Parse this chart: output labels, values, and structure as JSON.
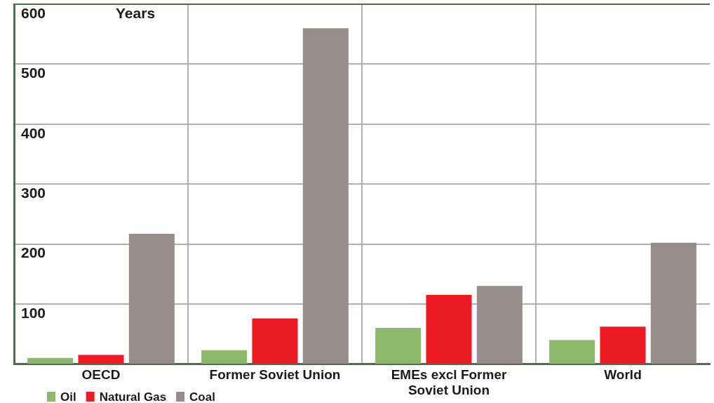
{
  "chart_data": {
    "type": "bar",
    "ylabel": "Years",
    "categories": [
      "OECD",
      "Former Soviet Union",
      "EMEs excl Former Soviet Union",
      "World"
    ],
    "series": [
      {
        "name": "Oil",
        "color": "#8dba6a",
        "values": [
          10,
          23,
          60,
          40
        ]
      },
      {
        "name": "Natural Gas",
        "color": "#ed1c24",
        "values": [
          15,
          76,
          115,
          62
        ]
      },
      {
        "name": "Coal",
        "color": "#968c8c",
        "values": [
          217,
          560,
          130,
          202
        ]
      }
    ],
    "ylim": [
      0,
      600
    ],
    "yticks": [
      100,
      200,
      300,
      400,
      500,
      600
    ],
    "grid": true,
    "legend": "bottom left"
  }
}
